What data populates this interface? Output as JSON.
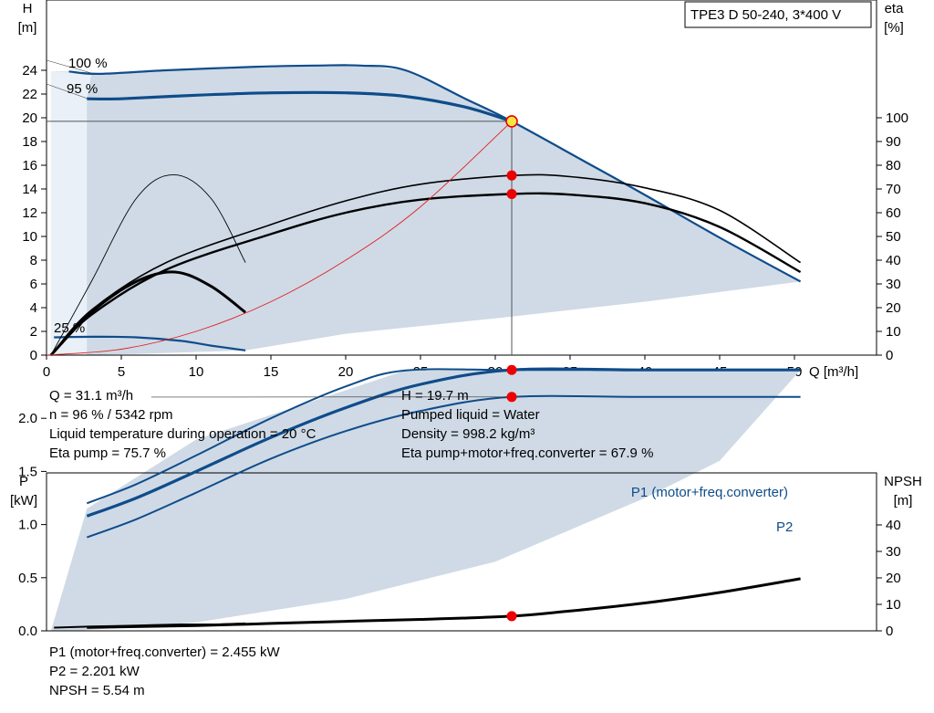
{
  "colors": {
    "area_fill": "#cfdae6",
    "pump_curve": "#0f4c8a",
    "efficiency_curve": "#000000",
    "duty_line": "#e02020",
    "duty_point_fill": "#f5e642",
    "point_marker": "#ee0000"
  },
  "chart_data": [
    {
      "type": "line",
      "panel": "head-efficiency",
      "title": "TPE3 D 50-240, 3*400 V",
      "xlabel": "Q [m³/h]",
      "ylabel_line1": "H",
      "ylabel_line2": "[m]",
      "y2label_line1": "eta",
      "y2label_line2": "[%]",
      "xlim": [
        0,
        52
      ],
      "ylim": [
        0,
        29
      ],
      "y2lim": [
        0,
        145
      ],
      "xticks": [
        0,
        5,
        10,
        15,
        20,
        25,
        30,
        35,
        40,
        45,
        50
      ],
      "yticks": [
        0,
        2,
        4,
        6,
        8,
        10,
        12,
        14,
        16,
        18,
        20,
        22,
        24
      ],
      "y2ticks": [
        0,
        10,
        20,
        30,
        40,
        50,
        60,
        70,
        80,
        90,
        100
      ],
      "grid": false,
      "curve_labels": [
        "100 %",
        "95 %",
        "25 %"
      ],
      "series": [
        {
          "name": "100 %",
          "role": "head",
          "x": [
            1.5,
            3.5,
            8,
            14,
            18,
            21,
            24,
            28,
            31.1,
            36,
            40,
            45,
            50.4
          ],
          "y": [
            23.9,
            23.7,
            24.0,
            24.3,
            24.4,
            24.4,
            24.0,
            21.6,
            19.7,
            16.3,
            13.5,
            9.9,
            6.2
          ]
        },
        {
          "name": "95 %",
          "role": "head",
          "x": [
            2.7,
            5,
            10,
            15,
            20,
            24,
            28,
            31.1
          ],
          "y": [
            21.6,
            21.6,
            21.9,
            22.1,
            22.1,
            21.8,
            20.9,
            19.7
          ]
        },
        {
          "name": "25 %",
          "role": "head",
          "x": [
            0.5,
            3,
            6,
            9,
            11,
            13.3
          ],
          "y": [
            1.5,
            1.55,
            1.5,
            1.2,
            0.8,
            0.4
          ]
        },
        {
          "name": "Eta pump",
          "role": "efficiency",
          "x": [
            0.3,
            3,
            8,
            15,
            20,
            25,
            31.1,
            35,
            40,
            45,
            50.4
          ],
          "y": [
            0,
            19,
            39,
            55,
            65,
            72,
            75.7,
            75.2,
            70.5,
            61,
            39
          ]
        },
        {
          "name": "Eta pump+motor+freq.converter",
          "role": "efficiency",
          "x": [
            0.3,
            3,
            8,
            15,
            20,
            25,
            31.1,
            35,
            40,
            45,
            50.4
          ],
          "y": [
            0,
            17,
            36,
            51,
            60,
            65.5,
            67.9,
            67.6,
            64,
            54,
            35
          ]
        },
        {
          "name": "Eta pump 25 %",
          "role": "efficiency",
          "x": [
            0.3,
            3,
            6,
            8.6,
            11,
            13.3
          ],
          "y": [
            0,
            18,
            31,
            35,
            29,
            18
          ]
        },
        {
          "name": "Eta total 25 %",
          "role": "efficiency",
          "x": [
            0.3,
            3,
            6,
            8.5,
            11,
            13.3
          ],
          "y": [
            0,
            31,
            66,
            76,
            66,
            39
          ]
        },
        {
          "name": "System curve",
          "role": "system",
          "x": [
            0,
            5,
            10,
            15,
            20,
            25,
            31.1
          ],
          "y": [
            0,
            0.5,
            2.0,
            4.5,
            8.0,
            12.5,
            19.7
          ]
        }
      ],
      "duty_point": {
        "Q": 31.1,
        "H": 19.7
      },
      "marker_points": [
        {
          "x": 31.1,
          "eta": 75.7
        },
        {
          "x": 31.1,
          "eta": 67.9
        }
      ],
      "operating_area_boundary": [
        {
          "x": 0.3,
          "y": 0
        },
        {
          "x": 0.3,
          "y": 23.9
        },
        {
          "x": 1.5,
          "y": 23.9
        },
        {
          "x": 3.5,
          "y": 23.7
        },
        {
          "x": 8,
          "y": 24.0
        },
        {
          "x": 14,
          "y": 24.3
        },
        {
          "x": 18,
          "y": 24.4
        },
        {
          "x": 21,
          "y": 24.4
        },
        {
          "x": 24,
          "y": 24.0
        },
        {
          "x": 28,
          "y": 21.6
        },
        {
          "x": 31.1,
          "y": 19.7
        },
        {
          "x": 36,
          "y": 16.3
        },
        {
          "x": 40,
          "y": 13.5
        },
        {
          "x": 45,
          "y": 9.9
        },
        {
          "x": 50.4,
          "y": 6.2
        },
        {
          "x": 40,
          "y": 4.5
        },
        {
          "x": 30,
          "y": 3.1
        },
        {
          "x": 20,
          "y": 1.8
        },
        {
          "x": 13.3,
          "y": 0.4
        },
        {
          "x": 6,
          "y": 0.1
        },
        {
          "x": 2,
          "y": 0
        }
      ]
    },
    {
      "type": "line",
      "panel": "power-npsh",
      "xlabel": "",
      "ylabel_line1": "P",
      "ylabel_line2": "[kW]",
      "y2label_line1": "NPSH",
      "y2label_line2": "[m]",
      "xlim": [
        0,
        52
      ],
      "ylim": [
        0,
        3.0
      ],
      "y2lim": [
        0,
        60
      ],
      "yticks": [
        0.0,
        0.5,
        1.0,
        1.5,
        2.0
      ],
      "ytick_labels": [
        "0.0",
        "0.5",
        "1.0",
        "1.5",
        "2.0"
      ],
      "y2ticks": [
        0,
        10,
        20,
        30,
        40
      ],
      "grid": false,
      "curve_labels": [
        "P1 (motor+freq.converter)",
        "P2"
      ],
      "series": [
        {
          "name": "P1 (motor+freq.converter)",
          "role": "power",
          "x": [
            2.7,
            6,
            10,
            15,
            20,
            25,
            31.1,
            40,
            50.4
          ],
          "y": [
            1.08,
            1.25,
            1.5,
            1.82,
            2.1,
            2.32,
            2.455,
            2.455,
            2.455
          ]
        },
        {
          "name": "P1 100 %",
          "role": "power",
          "x": [
            2.7,
            6,
            10,
            15,
            20,
            24,
            31.1,
            40,
            50.4
          ],
          "y": [
            1.2,
            1.38,
            1.65,
            2.0,
            2.3,
            2.45,
            2.455,
            2.455,
            2.455
          ]
        },
        {
          "name": "P2",
          "role": "power",
          "x": [
            2.7,
            6,
            10,
            15,
            20,
            25,
            31.1,
            40,
            50.4
          ],
          "y": [
            0.88,
            1.05,
            1.3,
            1.62,
            1.88,
            2.07,
            2.201,
            2.201,
            2.201
          ]
        },
        {
          "name": "P 25 %",
          "role": "power",
          "x": [
            0.5,
            3,
            6,
            9,
            11,
            13.3
          ],
          "y": [
            0.03,
            0.04,
            0.05,
            0.06,
            0.06,
            0.07
          ]
        },
        {
          "name": "NPSH",
          "role": "npsh",
          "x": [
            2.7,
            10,
            15,
            20,
            25,
            31.1,
            35,
            40,
            45,
            50.4
          ],
          "y": [
            1.3,
            2.0,
            2.8,
            3.6,
            4.3,
            5.54,
            7.5,
            10.5,
            14.5,
            19.7
          ]
        }
      ],
      "marker_points": [
        {
          "x": 31.1,
          "p": 2.455
        },
        {
          "x": 31.1,
          "p": 2.201
        },
        {
          "x": 31.1,
          "npsh": 5.54
        }
      ],
      "operating_area_boundary": [
        {
          "x": 0.3,
          "y": 0
        },
        {
          "x": 2.7,
          "y": 1.15
        },
        {
          "x": 10,
          "y": 1.8
        },
        {
          "x": 24,
          "y": 2.45
        },
        {
          "x": 31.1,
          "y": 2.455
        },
        {
          "x": 50.4,
          "y": 2.455
        },
        {
          "x": 45,
          "y": 1.6
        },
        {
          "x": 40,
          "y": 1.25
        },
        {
          "x": 30,
          "y": 0.65
        },
        {
          "x": 20,
          "y": 0.3
        },
        {
          "x": 10,
          "y": 0.08
        },
        {
          "x": 2,
          "y": 0
        }
      ]
    }
  ],
  "info_top": {
    "left": [
      "Q = 31.1 m³/h",
      "n = 96 % / 5342 rpm",
      "Liquid temperature during operation = 20 °C",
      "Eta pump = 75.7 %"
    ],
    "right": [
      "H = 19.7 m",
      "Pumped liquid = Water",
      "Density = 998.2 kg/m³",
      "Eta pump+motor+freq.converter = 67.9 %"
    ]
  },
  "info_bottom": [
    "P1 (motor+freq.converter) = 2.455 kW",
    "P2 = 2.201 kW",
    "NPSH = 5.54 m"
  ]
}
